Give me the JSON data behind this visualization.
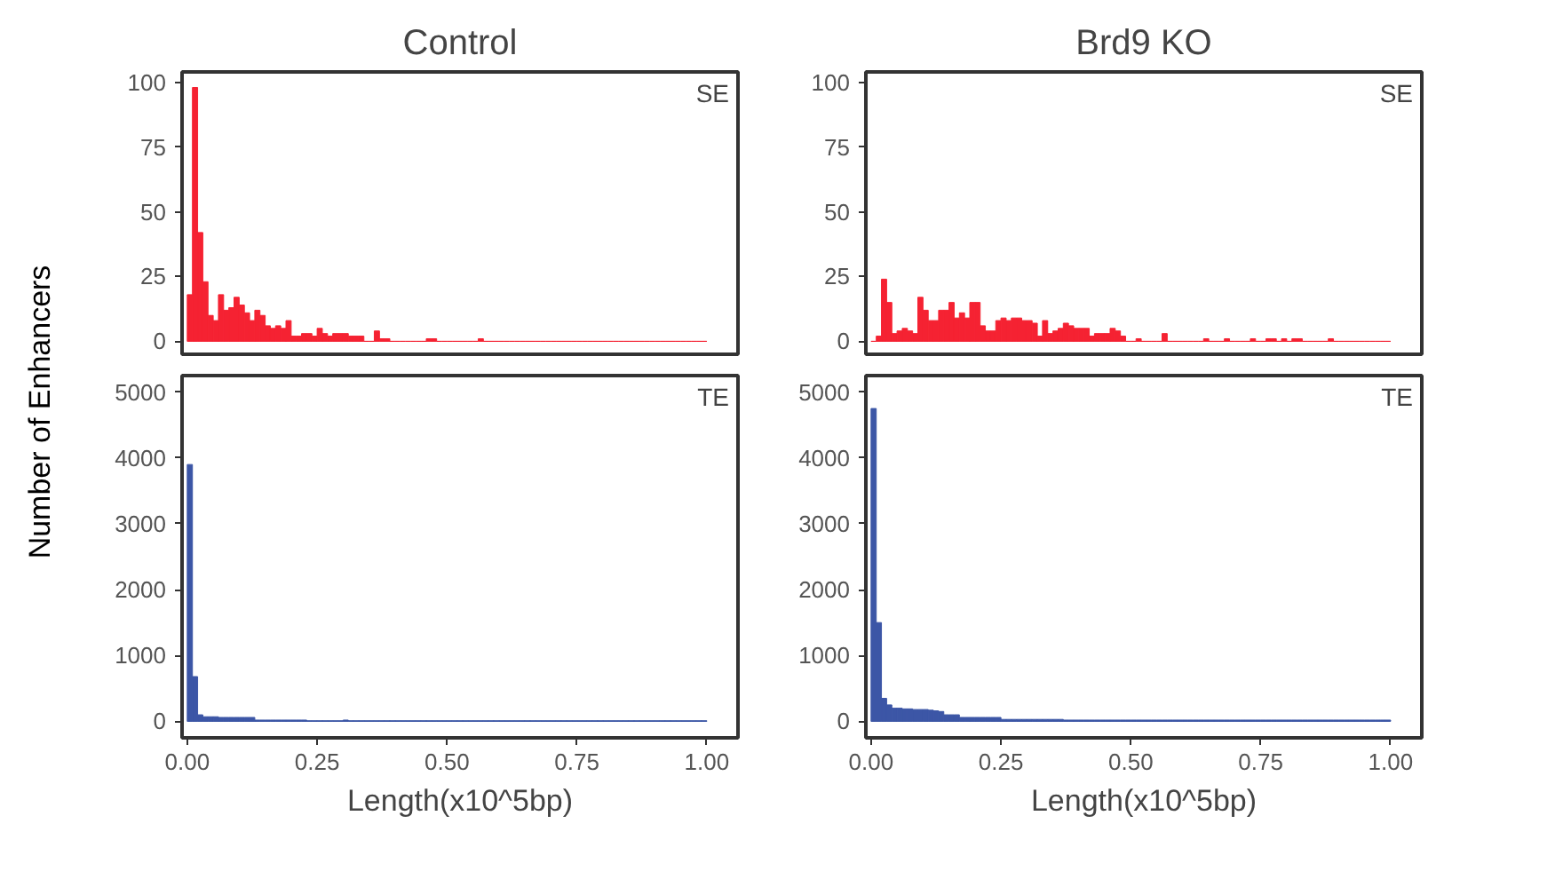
{
  "chart_data": [
    {
      "type": "histogram",
      "title": "Control",
      "ylabel": "Number of Enhancers",
      "annotations": [
        "SE"
      ],
      "color": "#f52232",
      "tick_labels": "y",
      "xlim": [
        -0.01,
        1.06
      ],
      "ylim": [
        -5,
        104
      ],
      "yticks": [
        0,
        25,
        50,
        75,
        100
      ],
      "bins": [
        0,
        0.01,
        0.02,
        0.03,
        0.04,
        0.05,
        0.06,
        0.07,
        0.08,
        0.09,
        0.1,
        0.11,
        0.12,
        0.13,
        0.14,
        0.15,
        0.16,
        0.17,
        0.18,
        0.19,
        0.2,
        0.21,
        0.22,
        0.23,
        0.24,
        0.25,
        0.26,
        0.27,
        0.28,
        0.29,
        0.3,
        0.31,
        0.32,
        0.33,
        0.34,
        0.35,
        0.36,
        0.37,
        0.38,
        0.39,
        0.4,
        0.41,
        0.42,
        0.43,
        0.44,
        0.45,
        0.46,
        0.47,
        0.48,
        0.49,
        0.5,
        0.51,
        0.52,
        0.53,
        0.54,
        0.55,
        0.56,
        0.57,
        0.58,
        0.59,
        0.6,
        0.61,
        0.62,
        0.63,
        0.64,
        0.65,
        0.66,
        0.67,
        0.68,
        0.69,
        0.7,
        0.71,
        0.72,
        0.73,
        0.74,
        0.75,
        0.76,
        0.77,
        0.78,
        0.79,
        0.8,
        0.81,
        0.82,
        0.83,
        0.84,
        0.85,
        0.86,
        0.87,
        0.88,
        0.89,
        0.9,
        0.91,
        0.92,
        0.93,
        0.94,
        0.95,
        0.96,
        0.97,
        0.98,
        0.99,
        1.0
      ],
      "values": [
        18,
        98,
        42,
        23,
        10,
        8,
        18,
        12,
        13,
        17,
        14,
        11,
        8,
        12,
        10,
        6,
        5,
        6,
        5,
        8,
        2,
        2,
        3,
        3,
        2,
        5,
        3,
        2,
        3,
        3,
        3,
        2,
        2,
        2,
        0,
        0,
        4,
        1,
        1,
        0,
        0,
        0,
        0,
        0,
        0,
        0,
        1,
        1,
        0,
        0,
        0,
        0,
        0,
        0,
        0,
        0,
        1,
        0,
        0,
        0,
        0,
        0,
        0,
        0,
        0,
        0,
        0,
        0,
        0,
        0,
        0,
        0,
        0,
        0,
        0,
        0,
        0,
        0,
        0,
        0,
        0,
        0,
        0,
        0,
        0,
        0,
        0,
        0,
        0,
        0,
        0,
        0,
        0,
        0,
        0,
        0,
        0,
        0,
        0,
        0
      ]
    },
    {
      "type": "histogram",
      "title": "Brd9 KO",
      "annotations": [
        "SE"
      ],
      "color": "#f52232",
      "tick_labels": "y",
      "xlim": [
        -0.01,
        1.06
      ],
      "ylim": [
        -5,
        104
      ],
      "yticks": [
        0,
        25,
        50,
        75,
        100
      ],
      "bins": [
        0,
        0.01,
        0.02,
        0.03,
        0.04,
        0.05,
        0.06,
        0.07,
        0.08,
        0.09,
        0.1,
        0.11,
        0.12,
        0.13,
        0.14,
        0.15,
        0.16,
        0.17,
        0.18,
        0.19,
        0.2,
        0.21,
        0.22,
        0.23,
        0.24,
        0.25,
        0.26,
        0.27,
        0.28,
        0.29,
        0.3,
        0.31,
        0.32,
        0.33,
        0.34,
        0.35,
        0.36,
        0.37,
        0.38,
        0.39,
        0.4,
        0.41,
        0.42,
        0.43,
        0.44,
        0.45,
        0.46,
        0.47,
        0.48,
        0.49,
        0.5,
        0.51,
        0.52,
        0.53,
        0.54,
        0.55,
        0.56,
        0.57,
        0.58,
        0.59,
        0.6,
        0.61,
        0.62,
        0.63,
        0.64,
        0.65,
        0.66,
        0.67,
        0.68,
        0.69,
        0.7,
        0.71,
        0.72,
        0.73,
        0.74,
        0.75,
        0.76,
        0.77,
        0.78,
        0.79,
        0.8,
        0.81,
        0.82,
        0.83,
        0.84,
        0.85,
        0.86,
        0.87,
        0.88,
        0.89,
        0.9,
        0.91,
        0.92,
        0.93,
        0.94,
        0.95,
        0.96,
        0.97,
        0.98,
        0.99,
        1.0
      ],
      "values": [
        0,
        2,
        24,
        15,
        3,
        4,
        5,
        4,
        3,
        17,
        12,
        8,
        8,
        12,
        12,
        15,
        9,
        11,
        9,
        15,
        15,
        6,
        4,
        4,
        8,
        9,
        8,
        9,
        9,
        8,
        8,
        7,
        2,
        8,
        3,
        4,
        5,
        7,
        6,
        5,
        5,
        5,
        2,
        3,
        3,
        3,
        5,
        4,
        2,
        0,
        0,
        1,
        0,
        0,
        0,
        0,
        3,
        0,
        0,
        0,
        0,
        0,
        0,
        0,
        1,
        0,
        0,
        0,
        1,
        0,
        0,
        0,
        0,
        1,
        0,
        0,
        1,
        1,
        0,
        1,
        0,
        1,
        1,
        0,
        0,
        0,
        0,
        0,
        1,
        0,
        0,
        0,
        0,
        0,
        0,
        0,
        0,
        0,
        0,
        0
      ]
    },
    {
      "type": "histogram",
      "xlabel": "Length(x10^5bp)",
      "annotations": [
        "TE"
      ],
      "color": "#3c56a6",
      "xlim": [
        -0.01,
        1.06
      ],
      "xticks": [
        {
          "value": 0,
          "label": "0.00"
        },
        {
          "value": 0.25,
          "label": "0.25"
        },
        {
          "value": 0.5,
          "label": "0.50"
        },
        {
          "value": 0.75,
          "label": "0.75"
        },
        {
          "value": 1,
          "label": "1.00"
        }
      ],
      "ylim": [
        -250,
        5250
      ],
      "yticks": [
        0,
        1000,
        2000,
        3000,
        4000,
        5000
      ],
      "bins": [
        0,
        0.01,
        0.02,
        0.03,
        0.04,
        0.05,
        0.06,
        0.07,
        0.08,
        0.09,
        0.1,
        0.11,
        0.12,
        0.13,
        0.14,
        0.15,
        0.16,
        0.17,
        0.18,
        0.19,
        0.2,
        0.21,
        0.22,
        0.23,
        0.24,
        0.25,
        0.26,
        0.27,
        0.28,
        0.29,
        0.3,
        0.31,
        0.32,
        0.33,
        0.34,
        0.35,
        0.36,
        0.37,
        0.38,
        0.39,
        0.4,
        0.41,
        0.42,
        0.43,
        0.44,
        0.45,
        0.46,
        0.47,
        0.48,
        0.49,
        0.5,
        0.51,
        0.52,
        0.53,
        0.54,
        0.55,
        0.56,
        0.57,
        0.58,
        0.59,
        0.6,
        0.61,
        0.62,
        0.63,
        0.64,
        0.65,
        0.66,
        0.67,
        0.68,
        0.69,
        0.7,
        0.71,
        0.72,
        0.73,
        0.74,
        0.75,
        0.76,
        0.77,
        0.78,
        0.79,
        0.8,
        0.81,
        0.82,
        0.83,
        0.84,
        0.85,
        0.86,
        0.87,
        0.88,
        0.89,
        0.9,
        0.91,
        0.92,
        0.93,
        0.94,
        0.95,
        0.96,
        0.97,
        0.98,
        0.99,
        1.0
      ],
      "values": [
        3900,
        680,
        100,
        70,
        70,
        70,
        60,
        60,
        60,
        60,
        60,
        60,
        60,
        20,
        20,
        20,
        20,
        20,
        20,
        20,
        20,
        20,
        20,
        10,
        10,
        10,
        10,
        10,
        10,
        10,
        20,
        10,
        10,
        10,
        10,
        10,
        10,
        10,
        10,
        10,
        10,
        10,
        10,
        10,
        10,
        10,
        10,
        10,
        10,
        10,
        10,
        10,
        10,
        10,
        10,
        10,
        10,
        10,
        10,
        10,
        10,
        10,
        10,
        10,
        10,
        10,
        10,
        10,
        10,
        10,
        10,
        10,
        10,
        10,
        10,
        10,
        10,
        10,
        10,
        10,
        10,
        10,
        10,
        10,
        10,
        10,
        10,
        10,
        10,
        10,
        10,
        10,
        10,
        10,
        10,
        10,
        10,
        10,
        10,
        10
      ]
    },
    {
      "type": "histogram",
      "xlabel": "Length(x10^5bp)",
      "annotations": [
        "TE"
      ],
      "color": "#3c56a6",
      "xlim": [
        -0.01,
        1.06
      ],
      "xticks": [
        {
          "value": 0,
          "label": "0.00"
        },
        {
          "value": 0.25,
          "label": "0.25"
        },
        {
          "value": 0.5,
          "label": "0.50"
        },
        {
          "value": 0.75,
          "label": "0.75"
        },
        {
          "value": 1,
          "label": "1.00"
        }
      ],
      "ylim": [
        -250,
        5250
      ],
      "yticks": [
        0,
        1000,
        2000,
        3000,
        4000,
        5000
      ],
      "bins": [
        0,
        0.01,
        0.02,
        0.03,
        0.04,
        0.05,
        0.06,
        0.07,
        0.08,
        0.09,
        0.1,
        0.11,
        0.12,
        0.13,
        0.14,
        0.15,
        0.16,
        0.17,
        0.18,
        0.19,
        0.2,
        0.21,
        0.22,
        0.23,
        0.24,
        0.25,
        0.26,
        0.27,
        0.28,
        0.29,
        0.3,
        0.31,
        0.32,
        0.33,
        0.34,
        0.35,
        0.36,
        0.37,
        0.38,
        0.39,
        0.4,
        0.41,
        0.42,
        0.43,
        0.44,
        0.45,
        0.46,
        0.47,
        0.48,
        0.49,
        0.5,
        0.51,
        0.52,
        0.53,
        0.54,
        0.55,
        0.56,
        0.57,
        0.58,
        0.59,
        0.6,
        0.61,
        0.62,
        0.63,
        0.64,
        0.65,
        0.66,
        0.67,
        0.68,
        0.69,
        0.7,
        0.71,
        0.72,
        0.73,
        0.74,
        0.75,
        0.76,
        0.77,
        0.78,
        0.79,
        0.8,
        0.81,
        0.82,
        0.83,
        0.84,
        0.85,
        0.86,
        0.87,
        0.88,
        0.89,
        0.9,
        0.91,
        0.92,
        0.93,
        0.94,
        0.95,
        0.96,
        0.97,
        0.98,
        0.99,
        1.0
      ],
      "values": [
        4750,
        1500,
        350,
        250,
        200,
        200,
        190,
        190,
        180,
        180,
        180,
        170,
        160,
        150,
        100,
        100,
        100,
        60,
        60,
        60,
        60,
        60,
        60,
        60,
        60,
        30,
        30,
        30,
        30,
        30,
        30,
        30,
        30,
        30,
        30,
        30,
        30,
        20,
        20,
        20,
        20,
        20,
        20,
        20,
        20,
        20,
        20,
        20,
        20,
        20,
        20,
        20,
        20,
        20,
        20,
        20,
        20,
        20,
        20,
        20,
        20,
        20,
        20,
        20,
        20,
        20,
        20,
        20,
        20,
        20,
        20,
        20,
        20,
        20,
        20,
        20,
        20,
        20,
        20,
        20,
        20,
        20,
        20,
        20,
        20,
        20,
        20,
        20,
        20,
        20,
        20,
        20,
        20,
        20,
        20,
        20,
        20,
        20,
        20,
        20
      ]
    }
  ]
}
